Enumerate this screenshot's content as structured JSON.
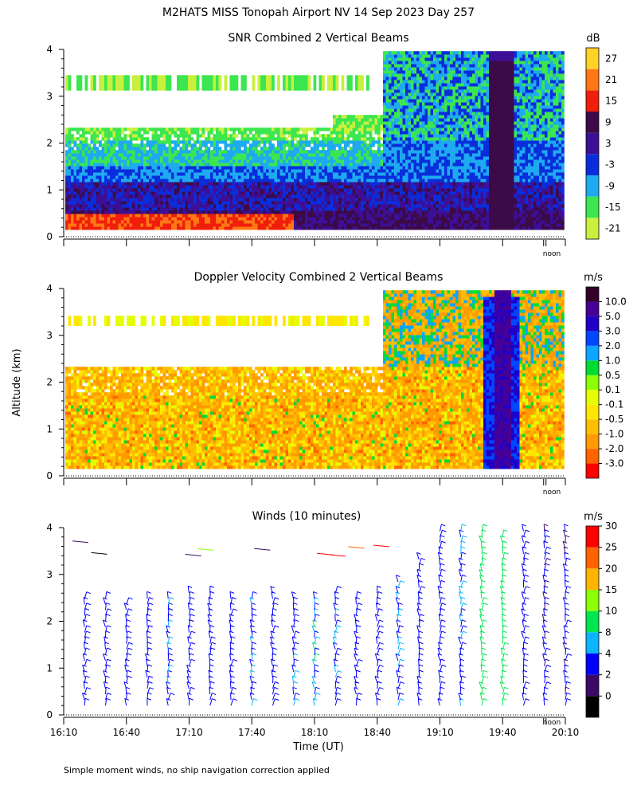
{
  "figure_title": "M2HATS MISS Tonopah Airport NV  14 Sep 2023 Day 257",
  "y_axis_label": "Altitude (km)",
  "x_axis_label": "Time (UT)",
  "footnote": "Simple moment winds, no ship navigation correction applied",
  "noon_marker": "noon",
  "colors": {
    "snr_scale": [
      "#c8f03c",
      "#3ce650",
      "#1eaaf0",
      "#0a2ddc",
      "#3c0f96",
      "#3c0a46",
      "#f01e0a",
      "#ff7814",
      "#ffd228"
    ],
    "doppler_scale": [
      "#ff0000",
      "#ff6400",
      "#ff9b00",
      "#ffbe00",
      "#ffe600",
      "#e6ff00",
      "#8cff00",
      "#00dc32",
      "#0aa5ff",
      "#0046ff",
      "#1e00c8",
      "#460096",
      "#320028"
    ],
    "wind_scale": [
      "#000000",
      "#3c0a64",
      "#0000ff",
      "#0ab4ff",
      "#00e650",
      "#8cff00",
      "#ffb400",
      "#ff6400",
      "#ff0000"
    ]
  },
  "chart_data": [
    {
      "type": "heatmap",
      "title": "SNR Combined 2 Vertical Beams",
      "units": "dB",
      "xlabel": "",
      "ylabel": "Altitude (km)",
      "ylim": [
        0,
        4
      ],
      "y_ticks": [
        "0",
        "1",
        "2",
        "3",
        "4"
      ],
      "xlim_hours": [
        16.1667,
        20.1667
      ],
      "colorbar_labels": [
        "-21",
        "-15",
        "-9",
        "-3",
        "3",
        "9",
        "15",
        "21",
        "27"
      ],
      "layers": [
        {
          "name": "surface layer",
          "t_start": 16.17,
          "t_end": 18.0,
          "alt_bottom": 0.15,
          "alt_top": 0.45,
          "level_db": 15
        },
        {
          "name": "boundary layer",
          "t_start": 16.17,
          "t_end": 20.1,
          "alt_bottom": 0.15,
          "alt_top": 1.4,
          "level_db": 6
        },
        {
          "name": "mixed layer",
          "t_start": 16.17,
          "t_end": 20.1,
          "alt_bottom": 1.2,
          "alt_top": 2.3,
          "level_db": -8
        },
        {
          "name": "elevated layer",
          "t_start": 16.17,
          "t_end": 18.6,
          "alt_bottom": 3.1,
          "alt_top": 3.45,
          "level_db": -16
        },
        {
          "name": "convective column",
          "t_start": 19.55,
          "t_end": 19.75,
          "alt_bottom": 0.15,
          "alt_top": 3.9,
          "level_db": 9
        }
      ]
    },
    {
      "type": "heatmap",
      "title": "Doppler Velocity Combined 2 Vertical Beams",
      "units": "m/s",
      "xlabel": "",
      "ylabel": "Altitude (km)",
      "ylim": [
        0,
        4
      ],
      "y_ticks": [
        "0",
        "1",
        "2",
        "3",
        "4"
      ],
      "xlim_hours": [
        16.1667,
        20.1667
      ],
      "colorbar_labels": [
        "-3.0",
        "-2.0",
        "-1.0",
        "-0.5",
        "-0.1",
        "0.1",
        "0.5",
        "1.0",
        "2.0",
        "3.0",
        "5.0",
        "10.0"
      ],
      "layers": [
        {
          "name": "boundary layer",
          "t_start": 16.17,
          "t_end": 20.1,
          "alt_bottom": 0.15,
          "alt_top": 2.3,
          "level_ms": -0.5
        },
        {
          "name": "elevated layer",
          "t_start": 16.17,
          "t_end": 18.6,
          "alt_bottom": 3.2,
          "alt_top": 3.4,
          "level_ms": 0.1
        },
        {
          "name": "downdraft column",
          "t_start": 19.58,
          "t_end": 19.72,
          "alt_bottom": 0.15,
          "alt_top": 3.9,
          "level_ms": 5.0
        }
      ]
    },
    {
      "type": "scatter",
      "title": "Winds (10 minutes)",
      "units": "m/s",
      "xlabel": "Time (UT)",
      "ylabel": "Altitude (km)",
      "ylim": [
        0,
        4
      ],
      "y_ticks": [
        "0",
        "1",
        "2",
        "3",
        "4"
      ],
      "xlim_hours": [
        16.1667,
        20.1667
      ],
      "x_ticks": [
        "16:10",
        "16:40",
        "17:10",
        "17:40",
        "18:10",
        "18:40",
        "19:10",
        "19:40",
        "20:10"
      ],
      "colorbar_labels": [
        "0",
        "2",
        "4",
        "8",
        "10",
        "15",
        "20",
        "25",
        "30"
      ],
      "profiles": [
        {
          "time": "16:20",
          "alt_top": 2.5,
          "speed": 6
        },
        {
          "time": "16:30",
          "alt_top": 2.5,
          "speed": 6
        },
        {
          "time": "16:40",
          "alt_top": 2.4,
          "speed": 6
        },
        {
          "time": "16:50",
          "alt_top": 2.6,
          "speed": 6
        },
        {
          "time": "17:00",
          "alt_top": 2.6,
          "speed": 7
        },
        {
          "time": "17:10",
          "alt_top": 2.7,
          "speed": 6
        },
        {
          "time": "17:20",
          "alt_top": 2.7,
          "speed": 6
        },
        {
          "time": "17:30",
          "alt_top": 2.6,
          "speed": 6
        },
        {
          "time": "17:40",
          "alt_top": 2.6,
          "speed": 7
        },
        {
          "time": "17:50",
          "alt_top": 2.7,
          "speed": 6
        },
        {
          "time": "18:00",
          "alt_top": 2.6,
          "speed": 7
        },
        {
          "time": "18:10",
          "alt_top": 2.6,
          "speed": 9
        },
        {
          "time": "18:20",
          "alt_top": 2.7,
          "speed": 7
        },
        {
          "time": "18:30",
          "alt_top": 2.6,
          "speed": 6
        },
        {
          "time": "18:40",
          "alt_top": 2.7,
          "speed": 6
        },
        {
          "time": "18:50",
          "alt_top": 2.9,
          "speed": 7
        },
        {
          "time": "19:00",
          "alt_top": 3.4,
          "speed": 6
        },
        {
          "time": "19:10",
          "alt_top": 4.0,
          "speed": 6
        },
        {
          "time": "19:20",
          "alt_top": 4.0,
          "speed": 7
        },
        {
          "time": "19:30",
          "alt_top": 4.0,
          "speed": 12
        },
        {
          "time": "19:40",
          "alt_top": 3.9,
          "speed": 13
        },
        {
          "time": "19:50",
          "alt_top": 4.0,
          "speed": 6
        },
        {
          "time": "20:00",
          "alt_top": 4.0,
          "speed": 5
        },
        {
          "time": "20:10",
          "alt_top": 4.0,
          "speed": 5
        }
      ]
    }
  ]
}
